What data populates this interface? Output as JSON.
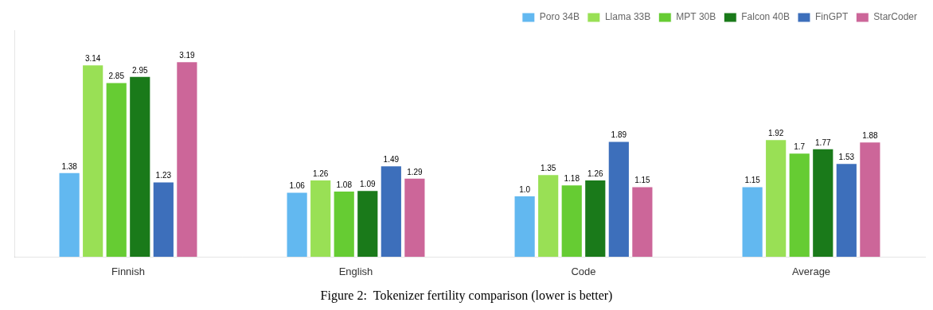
{
  "chart_data": {
    "type": "bar",
    "title": "Figure 2:  Tokenizer fertility comparison (lower is better)",
    "categories": [
      "Finnish",
      "English",
      "Code",
      "Average"
    ],
    "series": [
      {
        "name": "Poro 34B",
        "color": "#62b8f0",
        "values": [
          1.38,
          1.06,
          1.0,
          1.15
        ],
        "value_labels": [
          "1.38",
          "1.06",
          "1.0",
          "1.15"
        ]
      },
      {
        "name": "Llama 33B",
        "color": "#99e055",
        "values": [
          3.14,
          1.26,
          1.35,
          1.92
        ]
      },
      {
        "name": "MPT 30B",
        "color": "#66cc33",
        "values": [
          2.85,
          1.08,
          1.18,
          1.7
        ]
      },
      {
        "name": "Falcon 40B",
        "color": "#1a7a1a",
        "values": [
          2.95,
          1.09,
          1.26,
          1.77
        ]
      },
      {
        "name": "FinGPT",
        "color": "#3d6fbb",
        "values": [
          1.23,
          1.49,
          1.89,
          1.53
        ]
      },
      {
        "name": "StarCoder",
        "color": "#cc6699",
        "values": [
          3.19,
          1.29,
          1.15,
          1.88
        ]
      }
    ],
    "ylim": [
      0,
      3.7
    ],
    "grid": false,
    "legend": "upper right",
    "data_labels": true,
    "tick_labels": "x"
  }
}
